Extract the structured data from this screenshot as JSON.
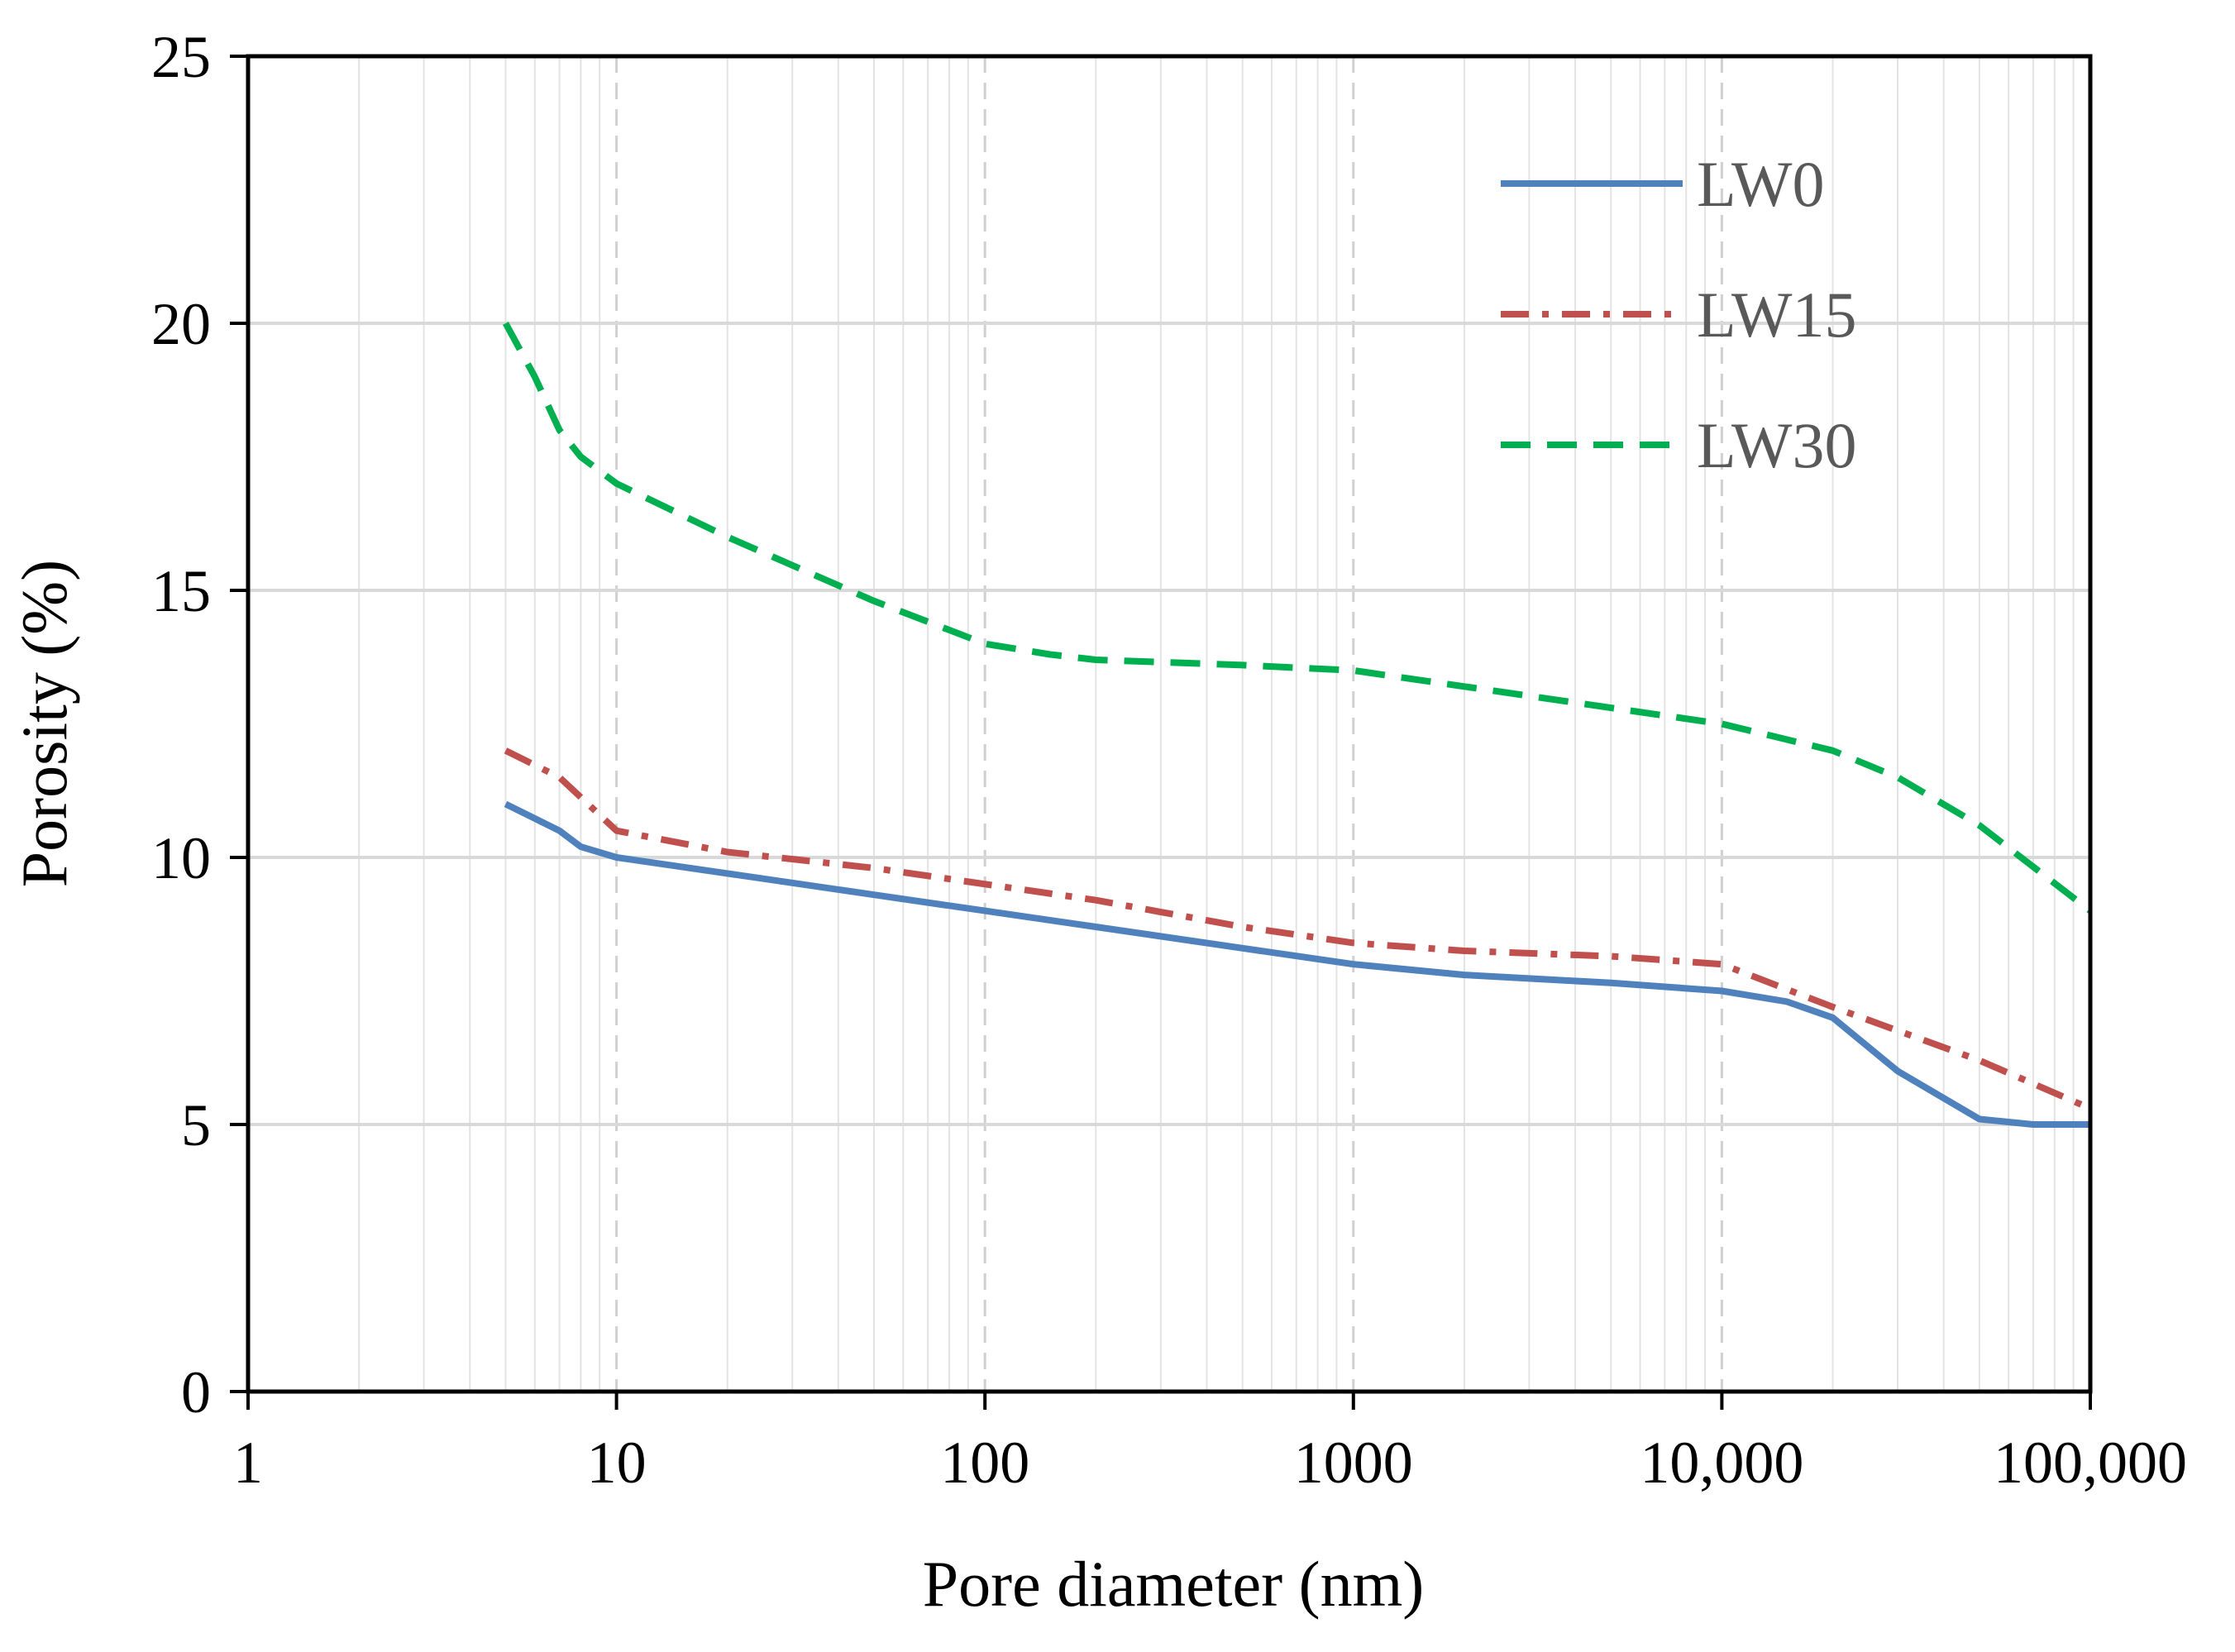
{
  "chart_data": {
    "type": "line",
    "title": "",
    "xlabel": "Pore diameter (nm)",
    "ylabel": "Porosity (%)",
    "xscale": "log",
    "xlim": [
      1,
      100000
    ],
    "ylim": [
      0,
      25
    ],
    "x_tick_values": [
      1,
      10,
      100,
      1000,
      10000,
      100000
    ],
    "x_tick_labels": [
      "1",
      "10",
      "100",
      "1000",
      "10,000",
      "100,000"
    ],
    "y_tick_values": [
      0,
      5,
      10,
      15,
      20,
      25
    ],
    "y_tick_labels": [
      "0",
      "5",
      "10",
      "15",
      "20",
      "25"
    ],
    "grid": true,
    "legend_position": "top-right",
    "series": [
      {
        "name": "LW0",
        "color": "#4F81BD",
        "style": "solid",
        "x": [
          5,
          7,
          8,
          10,
          20,
          50,
          100,
          200,
          500,
          1000,
          2000,
          5000,
          10000,
          15000,
          20000,
          30000,
          50000,
          70000,
          100000
        ],
        "y": [
          11.0,
          10.5,
          10.2,
          10.0,
          9.7,
          9.3,
          9.0,
          8.7,
          8.3,
          8.0,
          7.8,
          7.65,
          7.5,
          7.3,
          7.0,
          6.0,
          5.1,
          5.0,
          5.0
        ]
      },
      {
        "name": "LW15",
        "color": "#C0504D",
        "style": "dash-dot",
        "x": [
          5,
          7,
          10,
          20,
          50,
          100,
          200,
          500,
          1000,
          2000,
          5000,
          10000,
          20000,
          50000,
          100000
        ],
        "y": [
          12.0,
          11.5,
          10.5,
          10.1,
          9.8,
          9.5,
          9.2,
          8.7,
          8.4,
          8.25,
          8.15,
          8.0,
          7.2,
          6.2,
          5.3
        ]
      },
      {
        "name": "LW30",
        "color": "#00B050",
        "style": "dashed",
        "x": [
          5,
          6,
          7,
          8,
          10,
          20,
          50,
          100,
          150,
          200,
          500,
          1000,
          2000,
          5000,
          10000,
          20000,
          30000,
          50000,
          100000
        ],
        "y": [
          20.0,
          19.0,
          18.0,
          17.5,
          17.0,
          16.0,
          14.8,
          14.0,
          13.8,
          13.7,
          13.6,
          13.5,
          13.2,
          12.8,
          12.5,
          12.0,
          11.5,
          10.6,
          9.0
        ]
      }
    ]
  }
}
